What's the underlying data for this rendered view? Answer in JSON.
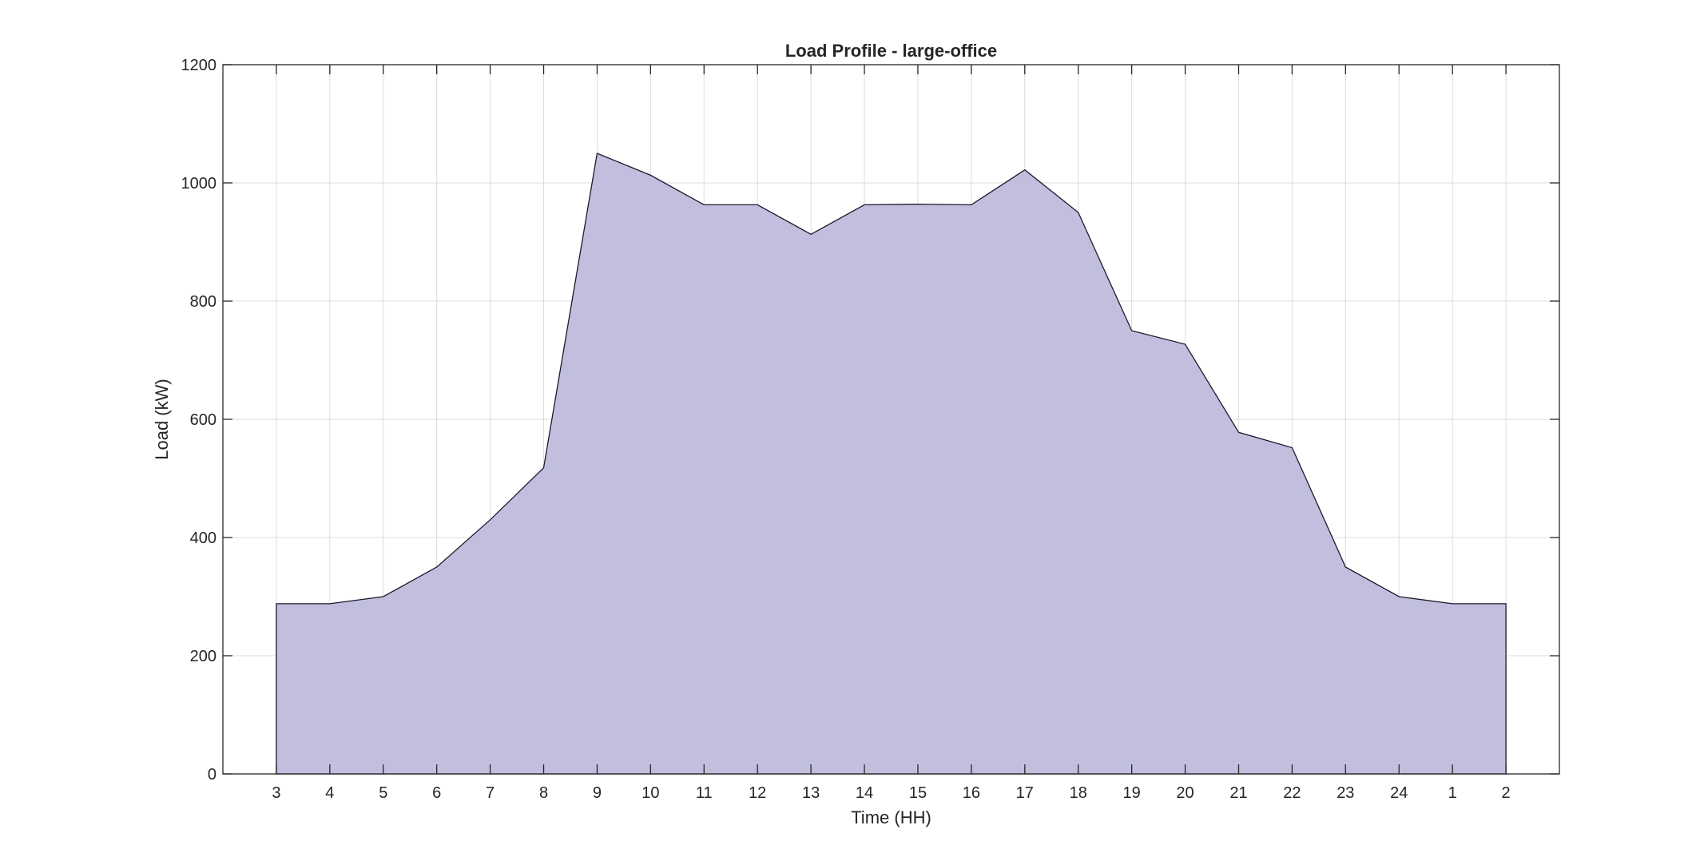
{
  "chart_data": {
    "type": "area",
    "title": "Load Profile - large-office",
    "xlabel": "Time (HH)",
    "ylabel": "Load (kW)",
    "categories": [
      "3",
      "4",
      "5",
      "6",
      "7",
      "8",
      "9",
      "10",
      "11",
      "12",
      "13",
      "14",
      "15",
      "16",
      "17",
      "18",
      "19",
      "20",
      "21",
      "22",
      "23",
      "24",
      "1",
      "2"
    ],
    "series": [
      {
        "values": [
          288,
          288,
          300,
          350,
          430,
          518,
          1050,
          1013,
          963,
          963,
          913,
          963,
          964,
          963,
          1022,
          950,
          750,
          727,
          578,
          552,
          350,
          300,
          288,
          288
        ]
      }
    ],
    "ylim": [
      0,
      1200
    ],
    "yticks": [
      0,
      200,
      400,
      600,
      800,
      1000,
      1200
    ],
    "grid": true,
    "colors": {
      "fill": "#c1bfdd",
      "line": "#1a1a2e"
    }
  }
}
